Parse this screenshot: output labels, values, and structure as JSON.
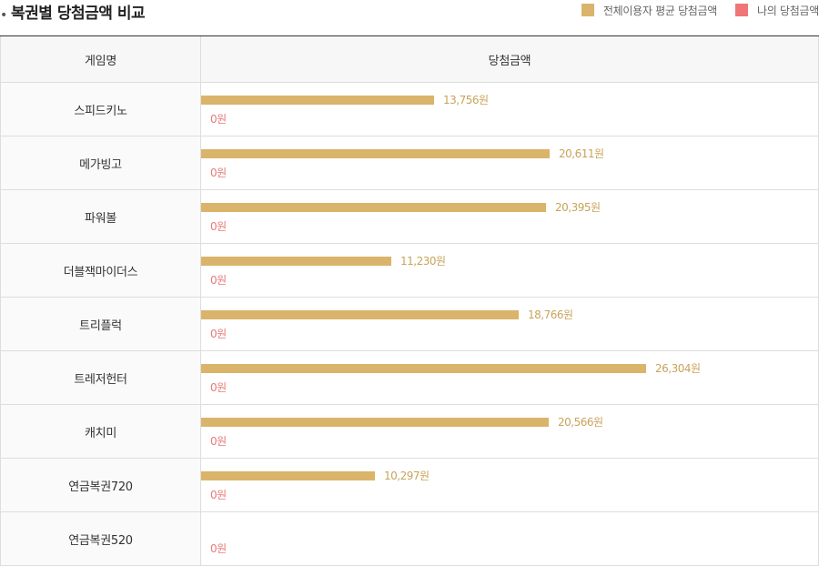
{
  "title": "복권별 당첨금액 비교",
  "legend": {
    "avg": {
      "label": "전체이용자 평균 당첨금액",
      "color": "#dab46a"
    },
    "mine": {
      "label": "나의 당첨금액",
      "color": "#f07575"
    }
  },
  "table": {
    "col_name": "게임명",
    "col_amount": "당첨금액"
  },
  "chart_data": {
    "type": "bar",
    "orientation": "horizontal",
    "title": "복권별 당첨금액 비교",
    "categories": [
      "스피드키노",
      "메가빙고",
      "파워볼",
      "더블잭마이더스",
      "트리플럭",
      "트레저헌터",
      "캐치미",
      "연금복권720",
      "연금복권520"
    ],
    "series": [
      {
        "name": "전체이용자 평균 당첨금액",
        "values": [
          13756,
          20611,
          20395,
          11230,
          18766,
          26304,
          20566,
          10297,
          null
        ],
        "labels": [
          "13,756원",
          "20,611원",
          "20,395원",
          "11,230원",
          "18,766원",
          "26,304원",
          "20,566원",
          "10,297원",
          ""
        ]
      },
      {
        "name": "나의 당첨금액",
        "values": [
          0,
          0,
          0,
          0,
          0,
          0,
          0,
          0,
          0
        ],
        "labels": [
          "0원",
          "0원",
          "0원",
          "0원",
          "0원",
          "0원",
          "0원",
          "0원",
          "0원"
        ]
      }
    ],
    "xlim": [
      0,
      36500
    ],
    "legend_position": "top-right",
    "grid": false
  }
}
